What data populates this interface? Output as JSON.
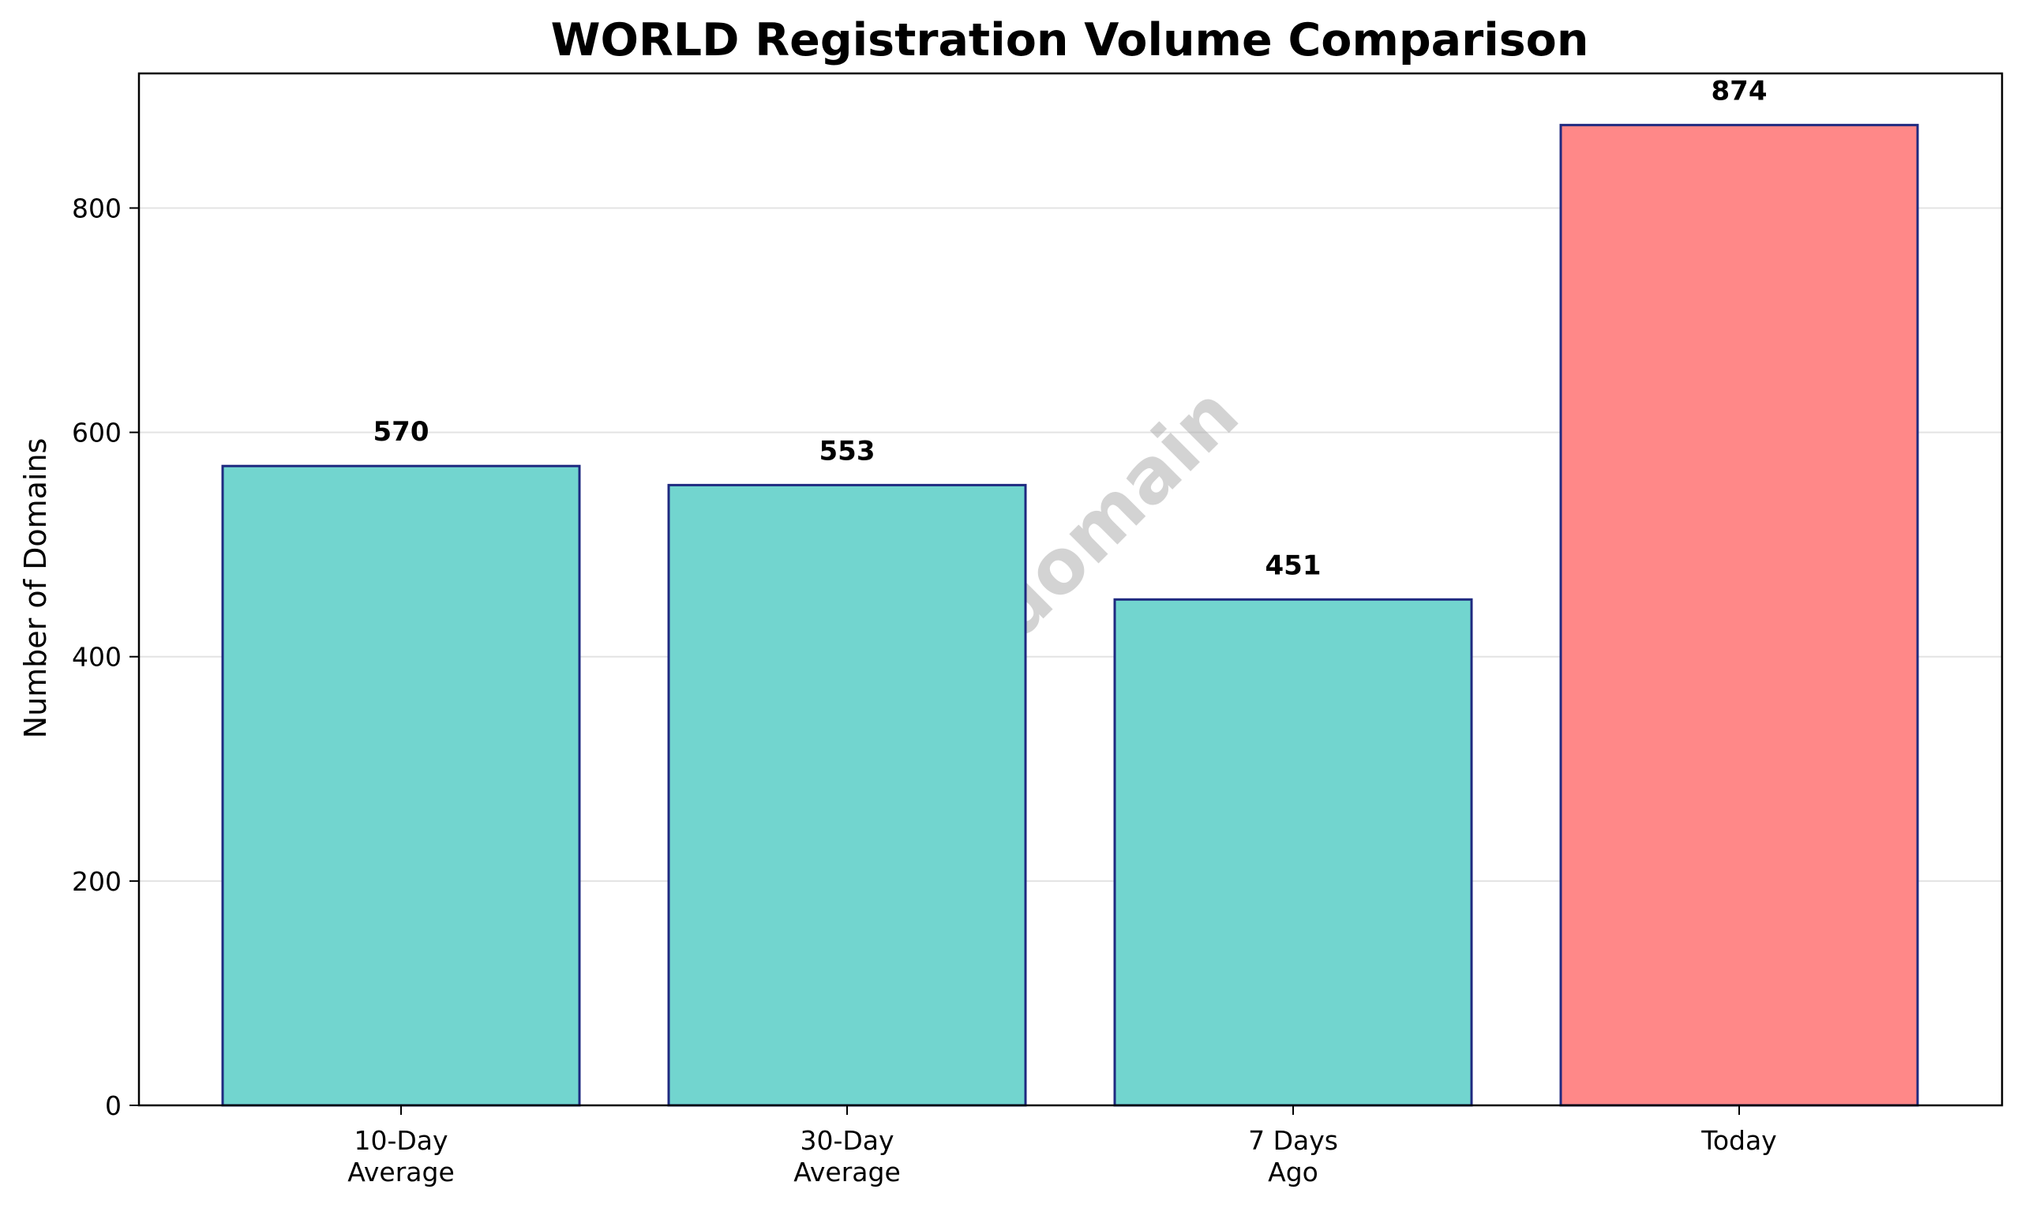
{
  "chart_data": {
    "type": "bar",
    "title": "WORLD Registration Volume Comparison",
    "xlabel": "",
    "ylabel": "Number of Domains",
    "categories": [
      [
        "10-Day",
        "Average"
      ],
      [
        "30-Day",
        "Average"
      ],
      [
        "7 Days",
        "Ago"
      ],
      [
        "Today"
      ]
    ],
    "values": [
      570,
      553,
      451,
      874
    ],
    "data_labels": [
      "570",
      "553",
      "451",
      "874"
    ],
    "colors": [
      "#72d5cf",
      "#72d5cf",
      "#72d5cf",
      "#ff8888"
    ],
    "edge_color": "#1f2a80",
    "ylim": [
      0,
      920
    ],
    "yticks": [
      0,
      200,
      400,
      600,
      800
    ],
    "grid": "horizontal",
    "watermark": "ABTdomain"
  }
}
